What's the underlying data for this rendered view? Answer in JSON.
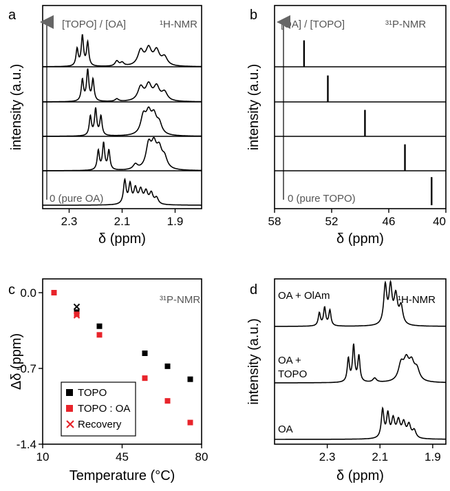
{
  "chart_data": [
    {
      "panel": "a",
      "type": "line",
      "title": "",
      "tag": "¹H-NMR",
      "arrow_label": "[TOPO] / [OA]",
      "bottom_label": "0 (pure OA)",
      "xlabel": "δ (ppm)",
      "ylabel": "intensity (a.u.)",
      "xlim": [
        2.4,
        1.8
      ],
      "xticks": [
        "2.3",
        "2.1",
        "1.9"
      ],
      "xtick_values": [
        2.3,
        2.1,
        1.9
      ],
      "spectra": [
        {
          "peaks": [
            [
              2.09,
              0.55,
              0.006
            ],
            [
              2.07,
              0.45,
              0.006
            ],
            [
              2.05,
              0.35,
              0.007
            ],
            [
              2.03,
              0.32,
              0.008
            ],
            [
              2.01,
              0.28,
              0.008
            ],
            [
              1.99,
              0.25,
              0.008
            ],
            [
              1.97,
              0.15,
              0.008
            ]
          ]
        },
        {
          "peaks": [
            [
              2.19,
              0.45,
              0.005
            ],
            [
              2.17,
              0.62,
              0.005
            ],
            [
              2.15,
              0.45,
              0.005
            ],
            [
              2.05,
              0.12,
              0.01
            ],
            [
              2.0,
              0.55,
              0.012
            ],
            [
              1.98,
              0.5,
              0.012
            ],
            [
              1.96,
              0.42,
              0.012
            ],
            [
              1.94,
              0.25,
              0.012
            ]
          ]
        },
        {
          "peaks": [
            [
              2.22,
              0.45,
              0.005
            ],
            [
              2.2,
              0.62,
              0.005
            ],
            [
              2.18,
              0.45,
              0.005
            ],
            [
              2.02,
              0.42,
              0.012
            ],
            [
              2.0,
              0.45,
              0.012
            ],
            [
              1.98,
              0.4,
              0.012
            ],
            [
              1.96,
              0.25,
              0.012
            ]
          ]
        },
        {
          "peaks": [
            [
              2.25,
              0.5,
              0.005
            ],
            [
              2.23,
              0.72,
              0.005
            ],
            [
              2.21,
              0.5,
              0.005
            ],
            [
              2.12,
              0.06,
              0.008
            ],
            [
              2.03,
              0.32,
              0.013
            ],
            [
              2.0,
              0.36,
              0.013
            ],
            [
              1.97,
              0.32,
              0.013
            ],
            [
              1.94,
              0.2,
              0.013
            ]
          ]
        },
        {
          "peaks": [
            [
              2.27,
              0.4,
              0.005
            ],
            [
              2.25,
              0.7,
              0.005
            ],
            [
              2.23,
              0.55,
              0.005
            ],
            [
              2.12,
              0.12,
              0.008
            ],
            [
              2.1,
              0.08,
              0.008
            ],
            [
              2.03,
              0.35,
              0.013
            ],
            [
              2.0,
              0.38,
              0.013
            ],
            [
              1.97,
              0.34,
              0.013
            ],
            [
              1.94,
              0.2,
              0.013
            ]
          ]
        }
      ]
    },
    {
      "panel": "b",
      "type": "line",
      "title": "",
      "tag": "³¹P-NMR",
      "arrow_label": "[OA] / [TOPO]",
      "bottom_label": "0 (pure TOPO)",
      "xlabel": "δ (ppm)",
      "ylabel": "intensity (a.u.)",
      "xlim": [
        58,
        40
      ],
      "xticks": [
        "58",
        "52",
        "46",
        "40"
      ],
      "xtick_values": [
        58,
        52,
        46,
        40
      ],
      "spectra": [
        {
          "peak_ppm": 41.5,
          "height": 0.85
        },
        {
          "peak_ppm": 44.3,
          "height": 0.8
        },
        {
          "peak_ppm": 48.5,
          "height": 0.8
        },
        {
          "peak_ppm": 52.4,
          "height": 0.8
        },
        {
          "peak_ppm": 54.9,
          "height": 0.8
        }
      ]
    },
    {
      "panel": "c",
      "type": "scatter",
      "title": "",
      "tag": "³¹P-NMR",
      "xlabel": "Temperature (°C)",
      "ylabel": "Δδ (ppm)",
      "xlim": [
        10,
        80
      ],
      "ylim": [
        -1.4,
        0.0
      ],
      "xticks": [
        "10",
        "45",
        "80"
      ],
      "xtick_values": [
        10,
        45,
        80
      ],
      "yticks": [
        "0.0",
        "-0.7",
        "-1.4"
      ],
      "ytick_values": [
        0.0,
        -0.7,
        -1.4
      ],
      "legend_position": "bottom-left",
      "series": [
        {
          "name": "TOPO",
          "marker": "square",
          "color": "#000000",
          "x": [
            15,
            25,
            35,
            55,
            65,
            75
          ],
          "y": [
            0.0,
            -0.18,
            -0.31,
            -0.56,
            -0.68,
            -0.8
          ]
        },
        {
          "name": "TOPO : OA",
          "marker": "square",
          "color": "#e8242b",
          "x": [
            15,
            25,
            35,
            55,
            65,
            75
          ],
          "y": [
            0.0,
            -0.2,
            -0.39,
            -0.79,
            -1.0,
            -1.2
          ]
        },
        {
          "name": "Recovery",
          "marker": "cross",
          "color": "#000000",
          "x": [
            25
          ],
          "y": [
            -0.13
          ]
        },
        {
          "name": "",
          "marker": "cross",
          "color": "#e8242b",
          "x": [
            25
          ],
          "y": [
            -0.21
          ]
        }
      ]
    },
    {
      "panel": "d",
      "type": "line",
      "title": "",
      "tag": "¹H-NMR",
      "xlabel": "δ (ppm)",
      "ylabel": "intensity (a.u.)",
      "xlim": [
        2.5,
        1.85
      ],
      "xticks": [
        "2.3",
        "2.1",
        "1.9"
      ],
      "xtick_values": [
        2.3,
        2.1,
        1.9
      ],
      "spectra": [
        {
          "label": "OA",
          "peaks": [
            [
              2.09,
              0.55,
              0.006
            ],
            [
              2.07,
              0.45,
              0.006
            ],
            [
              2.05,
              0.35,
              0.007
            ],
            [
              2.03,
              0.32,
              0.008
            ],
            [
              2.01,
              0.28,
              0.008
            ],
            [
              1.99,
              0.25,
              0.008
            ],
            [
              1.97,
              0.15,
              0.008
            ]
          ]
        },
        {
          "label_lines": [
            "OA +",
            "TOPO"
          ],
          "peaks": [
            [
              2.22,
              0.45,
              0.005
            ],
            [
              2.2,
              0.7,
              0.005
            ],
            [
              2.18,
              0.5,
              0.005
            ],
            [
              2.12,
              0.08,
              0.008
            ],
            [
              2.02,
              0.32,
              0.012
            ],
            [
              2.0,
              0.36,
              0.012
            ],
            [
              1.98,
              0.32,
              0.012
            ],
            [
              1.96,
              0.22,
              0.012
            ]
          ]
        },
        {
          "label": "OA + OlAm",
          "peaks": [
            [
              2.33,
              0.25,
              0.005
            ],
            [
              2.31,
              0.35,
              0.005
            ],
            [
              2.29,
              0.3,
              0.005
            ],
            [
              2.08,
              0.75,
              0.007
            ],
            [
              2.06,
              0.7,
              0.007
            ],
            [
              2.04,
              0.55,
              0.008
            ],
            [
              2.02,
              0.35,
              0.008
            ]
          ]
        }
      ]
    }
  ],
  "colors": {
    "axis": "#000000",
    "arrow": "#666666",
    "label_gray": "#555555",
    "red": "#e8242b"
  }
}
